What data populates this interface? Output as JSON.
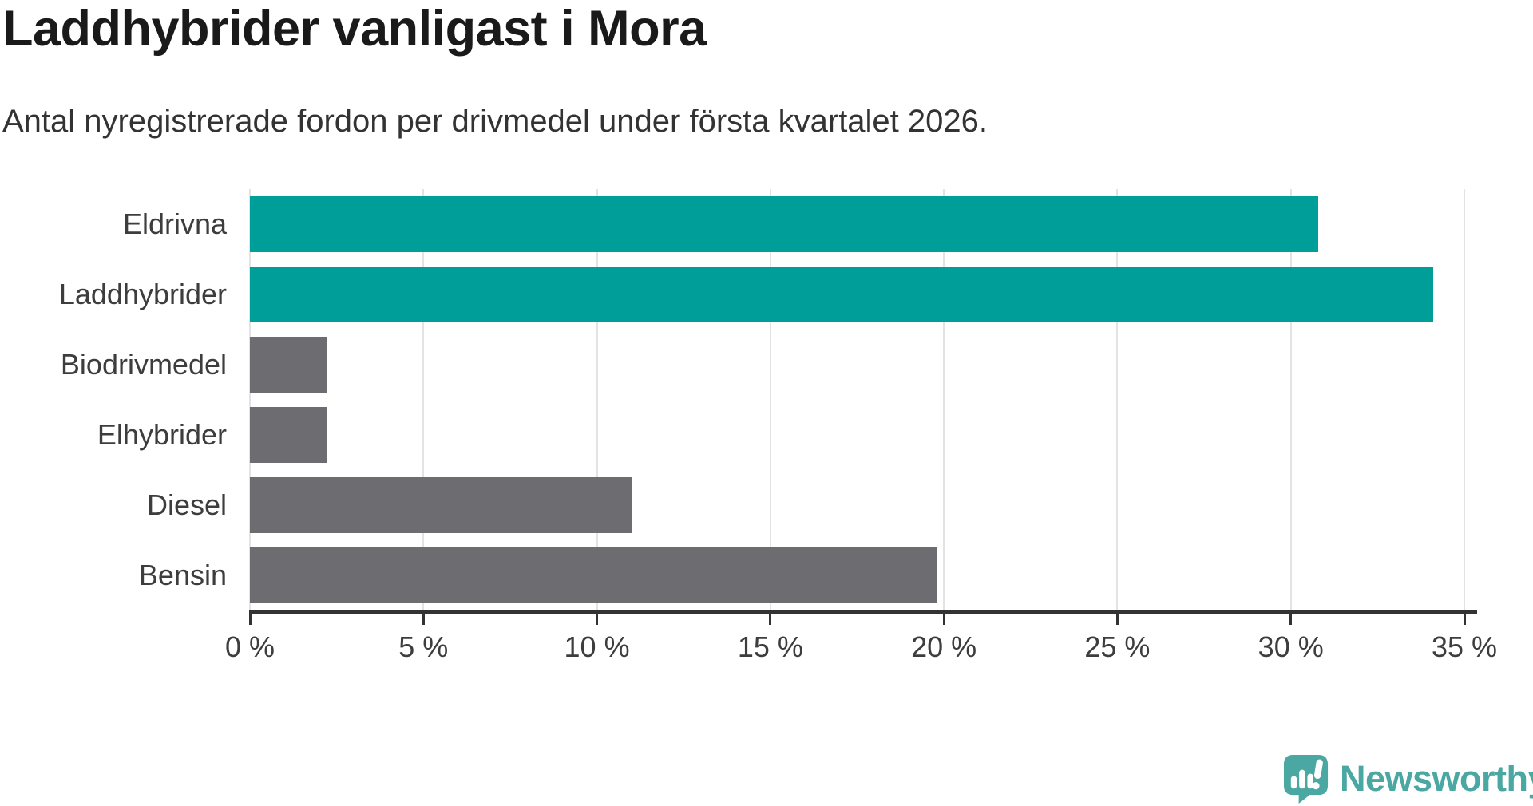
{
  "header": {
    "title": "Laddhybrider vanligast i Mora",
    "subtitle": "Antal nyregistrerade fordon per drivmedel under första kvartalet 2026."
  },
  "chart_data": {
    "type": "bar",
    "orientation": "horizontal",
    "title": "Laddhybrider vanligast i Mora",
    "subtitle": "Antal nyregistrerade fordon per drivmedel under första kvartalet 2026.",
    "categories": [
      "Eldrivna",
      "Laddhybrider",
      "Biodrivmedel",
      "Elhybrider",
      "Diesel",
      "Bensin"
    ],
    "values": [
      30.8,
      34.1,
      2.2,
      2.2,
      11.0,
      19.8
    ],
    "unit": "%",
    "xlabel": "",
    "ylabel": "",
    "xlim": [
      0,
      35
    ],
    "x_ticks": [
      0,
      5,
      10,
      15,
      20,
      25,
      30,
      35
    ],
    "tick_suffix": " %",
    "grid": true,
    "legend": "none",
    "highlighted_categories": [
      "Eldrivna",
      "Laddhybrider"
    ],
    "bar_colors": [
      "#009E99",
      "#009E99",
      "#6C6C71",
      "#6C6C71",
      "#6C6C71",
      "#6C6C71"
    ]
  },
  "colors": {
    "accent_teal": "#009E99",
    "neutral_gray": "#6C6C71",
    "grid": "#E3E3E3",
    "axis": "#333333",
    "title_text": "#1A1A1A",
    "subtitle_text": "#333333",
    "label_text": "#3D3D3D",
    "logo_teal": "#4BA7A1",
    "background": "#FFFFFF"
  },
  "branding": {
    "logo_text": "Newsworthy",
    "logo_icon": "newsworthy-speech-bubble-bar-chart-icon"
  }
}
